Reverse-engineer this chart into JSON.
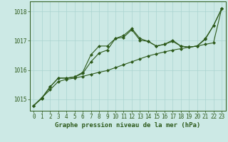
{
  "x": [
    0,
    1,
    2,
    3,
    4,
    5,
    6,
    7,
    8,
    9,
    10,
    11,
    12,
    13,
    14,
    15,
    16,
    17,
    18,
    19,
    20,
    21,
    22,
    23
  ],
  "line1": [
    1014.78,
    1015.05,
    1015.32,
    1015.6,
    1015.68,
    1015.72,
    1015.78,
    1015.85,
    1015.92,
    1015.98,
    1016.08,
    1016.18,
    1016.28,
    1016.38,
    1016.48,
    1016.55,
    1016.62,
    1016.68,
    1016.73,
    1016.78,
    1016.82,
    1016.88,
    1016.93,
    1018.1
  ],
  "line2": [
    1014.78,
    1015.05,
    1015.42,
    1015.72,
    1015.72,
    1015.76,
    1015.88,
    1016.28,
    1016.58,
    1016.68,
    1017.08,
    1017.12,
    1017.38,
    1017.02,
    1016.98,
    1016.82,
    1016.88,
    1016.98,
    1016.82,
    1016.78,
    1016.82,
    1017.08,
    1017.52,
    1018.1
  ],
  "line3": [
    1014.78,
    1015.02,
    1015.42,
    1015.72,
    1015.72,
    1015.76,
    1015.92,
    1016.52,
    1016.82,
    1016.82,
    1017.08,
    1017.18,
    1017.42,
    1017.08,
    1016.98,
    1016.82,
    1016.88,
    1017.02,
    1016.82,
    1016.78,
    1016.82,
    1017.05,
    1017.52,
    1018.1
  ],
  "line_color": "#2d5a1b",
  "bg_color": "#cce9e5",
  "grid_color": "#aad4d0",
  "xlabel": "Graphe pression niveau de la mer (hPa)",
  "ylim_min": 1014.6,
  "ylim_max": 1018.35,
  "yticks": [
    1015,
    1016,
    1017,
    1018
  ],
  "xticks": [
    0,
    1,
    2,
    3,
    4,
    5,
    6,
    7,
    8,
    9,
    10,
    11,
    12,
    13,
    14,
    15,
    16,
    17,
    18,
    19,
    20,
    21,
    22,
    23
  ],
  "marker": "D",
  "markersize": 2.0,
  "linewidth": 0.8,
  "tick_fontsize": 5.5,
  "xlabel_fontsize": 6.5
}
